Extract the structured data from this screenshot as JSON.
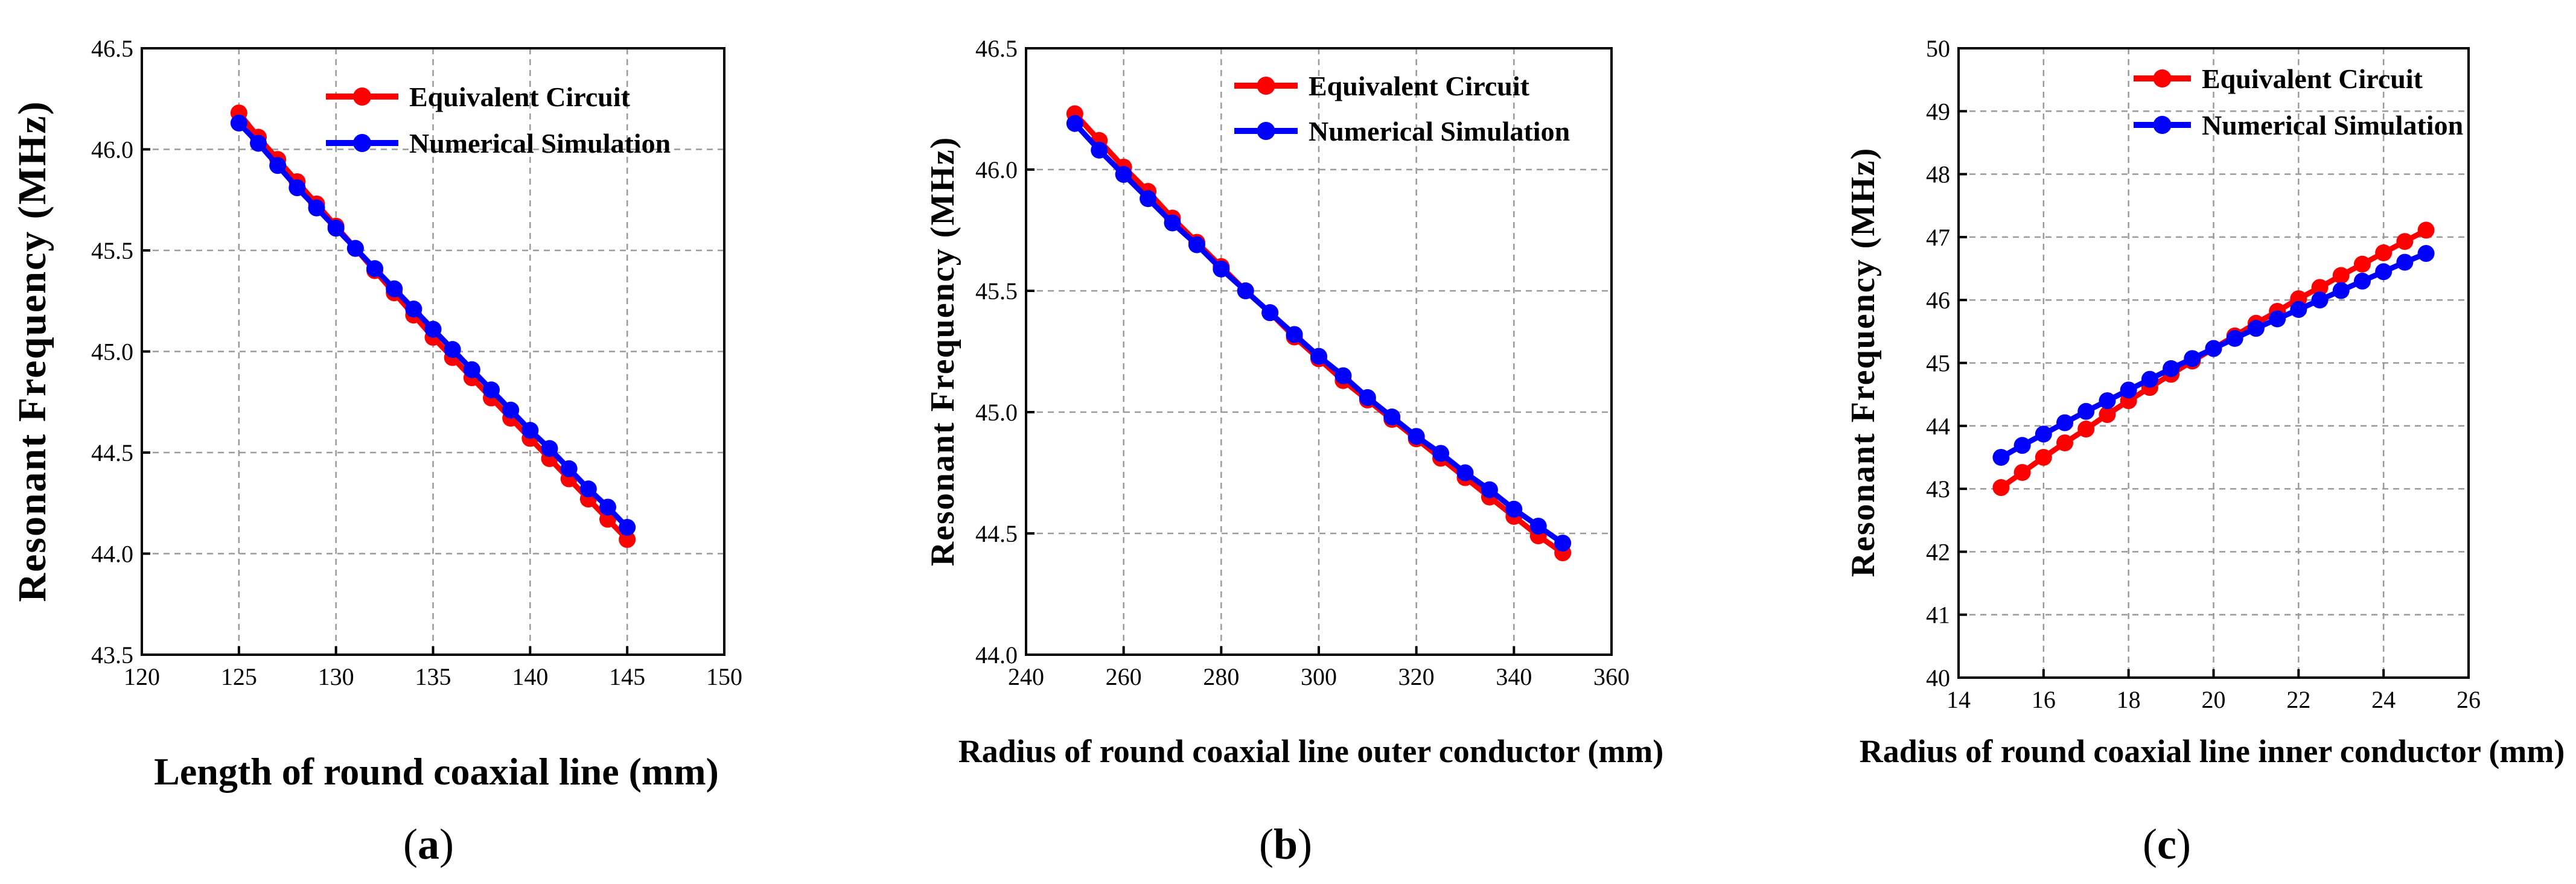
{
  "chart_data": [
    {
      "type": "line",
      "panel": "a",
      "panel_prefix": "(",
      "panel_letter": "a",
      "panel_suffix": ")",
      "xlabel": "Length of round coaxial line (mm)",
      "ylabel": "Resonant Frequency (MHz)",
      "xlim": [
        120,
        150
      ],
      "ylim": [
        43.5,
        46.5
      ],
      "xticks": [
        120,
        125,
        130,
        135,
        140,
        145,
        150
      ],
      "xtick_labels": [
        "120",
        "125",
        "130",
        "135",
        "140",
        "145",
        "150"
      ],
      "yticks": [
        43.5,
        44.0,
        44.5,
        45.0,
        45.5,
        46.0,
        46.5
      ],
      "ytick_labels": [
        "43.5",
        "44.0",
        "44.5",
        "45.0",
        "45.5",
        "46.0",
        "46.5"
      ],
      "grid": true,
      "legend_position": "top-right",
      "series": [
        {
          "name": "Equivalent Circuit",
          "color": "#ff0000",
          "x": [
            125,
            126,
            127,
            128,
            129,
            130,
            131,
            132,
            133,
            134,
            135,
            136,
            137,
            138,
            139,
            140,
            141,
            142,
            143,
            144,
            145
          ],
          "y": [
            46.18,
            46.06,
            45.95,
            45.84,
            45.73,
            45.62,
            45.51,
            45.4,
            45.29,
            45.18,
            45.07,
            44.97,
            44.87,
            44.77,
            44.67,
            44.57,
            44.47,
            44.37,
            44.27,
            44.17,
            44.07
          ]
        },
        {
          "name": "Numerical Simulation",
          "color": "#0000ff",
          "x": [
            125,
            126,
            127,
            128,
            129,
            130,
            131,
            132,
            133,
            134,
            135,
            136,
            137,
            138,
            139,
            140,
            141,
            142,
            143,
            144,
            145
          ],
          "y": [
            46.13,
            46.03,
            45.92,
            45.81,
            45.71,
            45.61,
            45.51,
            45.41,
            45.31,
            45.21,
            45.11,
            45.01,
            44.91,
            44.81,
            44.71,
            44.61,
            44.52,
            44.42,
            44.32,
            44.23,
            44.13
          ]
        }
      ]
    },
    {
      "type": "line",
      "panel": "b",
      "panel_prefix": "(",
      "panel_letter": "b",
      "panel_suffix": ")",
      "xlabel": "Radius of round coaxial line outer conductor (mm)",
      "ylabel": "Resonant Frequency (MHz)",
      "xlim": [
        240,
        360
      ],
      "ylim": [
        44.0,
        46.5
      ],
      "xticks": [
        240,
        260,
        280,
        300,
        320,
        340,
        360
      ],
      "xtick_labels": [
        "240",
        "260",
        "280",
        "300",
        "320",
        "340",
        "360"
      ],
      "yticks": [
        44.0,
        44.5,
        45.0,
        45.5,
        46.0,
        46.5
      ],
      "ytick_labels": [
        "44.0",
        "44.5",
        "45.0",
        "45.5",
        "46.0",
        "46.5"
      ],
      "grid": true,
      "legend_position": "top-right",
      "series": [
        {
          "name": "Equivalent Circuit",
          "color": "#ff0000",
          "x": [
            250,
            255,
            260,
            265,
            270,
            275,
            280,
            285,
            290,
            295,
            300,
            305,
            310,
            315,
            320,
            325,
            330,
            335,
            340,
            345,
            350
          ],
          "y": [
            46.23,
            46.12,
            46.01,
            45.91,
            45.8,
            45.7,
            45.6,
            45.5,
            45.41,
            45.31,
            45.22,
            45.13,
            45.05,
            44.97,
            44.89,
            44.81,
            44.73,
            44.65,
            44.57,
            44.49,
            44.42
          ]
        },
        {
          "name": "Numerical Simulation",
          "color": "#0000ff",
          "x": [
            250,
            255,
            260,
            265,
            270,
            275,
            280,
            285,
            290,
            295,
            300,
            305,
            310,
            315,
            320,
            325,
            330,
            335,
            340,
            345,
            350
          ],
          "y": [
            46.19,
            46.08,
            45.98,
            45.88,
            45.78,
            45.69,
            45.59,
            45.5,
            45.41,
            45.32,
            45.23,
            45.15,
            45.06,
            44.98,
            44.9,
            44.83,
            44.75,
            44.68,
            44.6,
            44.53,
            44.46
          ]
        }
      ]
    },
    {
      "type": "line",
      "panel": "c",
      "panel_prefix": "(",
      "panel_letter": "c",
      "panel_suffix": ")",
      "xlabel": "Radius of round coaxial line inner conductor (mm)",
      "ylabel": "Resonant Frequency (MHz)",
      "xlim": [
        14,
        26
      ],
      "ylim": [
        40,
        50
      ],
      "xticks": [
        14,
        16,
        18,
        20,
        22,
        24,
        26
      ],
      "xtick_labels": [
        "14",
        "16",
        "18",
        "20",
        "22",
        "24",
        "26"
      ],
      "yticks": [
        40,
        41,
        42,
        43,
        44,
        45,
        46,
        47,
        48,
        49,
        50
      ],
      "ytick_labels": [
        "40",
        "41",
        "42",
        "43",
        "44",
        "45",
        "46",
        "47",
        "48",
        "49",
        "50"
      ],
      "grid": true,
      "legend_position": "top-right",
      "series": [
        {
          "name": "Equivalent Circuit",
          "color": "#ff0000",
          "x": [
            15,
            15.5,
            16,
            16.5,
            17,
            17.5,
            18,
            18.5,
            19,
            19.5,
            20,
            20.5,
            21,
            21.5,
            22,
            22.5,
            23,
            23.5,
            24,
            24.5,
            25
          ],
          "y": [
            43.02,
            43.26,
            43.5,
            43.73,
            43.95,
            44.18,
            44.4,
            44.61,
            44.82,
            45.03,
            45.23,
            45.43,
            45.63,
            45.82,
            46.02,
            46.2,
            46.39,
            46.57,
            46.75,
            46.93,
            47.11
          ]
        },
        {
          "name": "Numerical Simulation",
          "color": "#0000ff",
          "x": [
            15,
            15.5,
            16,
            16.5,
            17,
            17.5,
            18,
            18.5,
            19,
            19.5,
            20,
            20.5,
            21,
            21.5,
            22,
            22.5,
            23,
            23.5,
            24,
            24.5,
            25
          ],
          "y": [
            43.5,
            43.69,
            43.87,
            44.05,
            44.23,
            44.4,
            44.57,
            44.74,
            44.91,
            45.07,
            45.23,
            45.39,
            45.55,
            45.7,
            45.85,
            46.0,
            46.15,
            46.3,
            46.45,
            46.6,
            46.74
          ]
        }
      ]
    }
  ]
}
